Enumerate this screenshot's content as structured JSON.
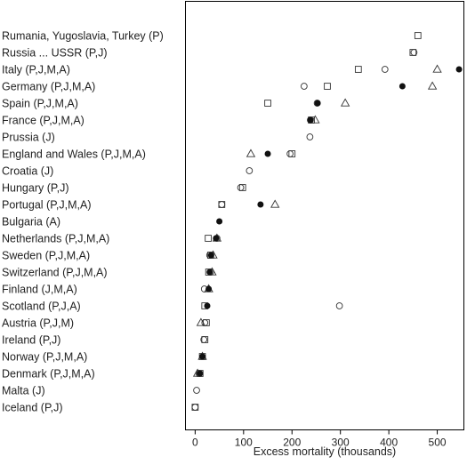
{
  "chart_data": {
    "type": "scatter",
    "title": "",
    "xlabel": "Excess mortality (thousands)",
    "ylabel": "",
    "xlim": [
      -20,
      555
    ],
    "xticks": [
      0,
      100,
      200,
      300,
      400,
      500
    ],
    "grid": false,
    "legend": "none",
    "categories": [
      "Rumania, Yugoslavia, Turkey  (P)",
      "Russia ... USSR (P,J)",
      "Italy (P,J,M,A)",
      "Germany (P,J,M,A)",
      "Spain (P,J,M,A)",
      "France (P,J,M,A)",
      "Prussia (J)",
      "England and Wales (P,J,M,A)",
      "Croatia (J)",
      "Hungary (P,J)",
      "Portugal (P,J,M,A)",
      "Bulgaria (A)",
      "Netherlands (P,J,M,A)",
      "Sweden (P,J,M,A)",
      "Switzerland (P,J,M,A)",
      "Finland (J,M,A)",
      "Scotland (P,J,A)",
      "Austria (P,J,M)",
      "Ireland (P,J)",
      "Norway (P,J,M,A)",
      "Denmark (P,J,M,A)",
      "Malta (J)",
      "Iceland (P,J)"
    ],
    "series": [
      {
        "marker": "square",
        "values": [
          460,
          450,
          337,
          273,
          150,
          240,
          null,
          200,
          null,
          98,
          55,
          null,
          27,
          32,
          28,
          null,
          20,
          23,
          20,
          15,
          10,
          null,
          0
        ]
      },
      {
        "marker": "circle-open",
        "values": [
          null,
          452,
          392,
          225,
          252,
          238,
          237,
          196,
          112,
          94,
          55,
          null,
          45,
          30,
          32,
          19,
          298,
          20,
          18,
          null,
          8,
          3,
          0
        ]
      },
      {
        "marker": "triangle",
        "values": [
          null,
          null,
          500,
          490,
          310,
          248,
          null,
          115,
          null,
          null,
          165,
          null,
          45,
          37,
          35,
          28,
          null,
          12,
          null,
          15,
          5,
          null,
          null
        ]
      },
      {
        "marker": "circle-filled",
        "values": [
          null,
          null,
          545,
          428,
          253,
          238,
          null,
          150,
          null,
          null,
          135,
          50,
          43,
          33,
          30,
          28,
          25,
          null,
          null,
          15,
          10,
          null,
          null
        ]
      }
    ]
  }
}
